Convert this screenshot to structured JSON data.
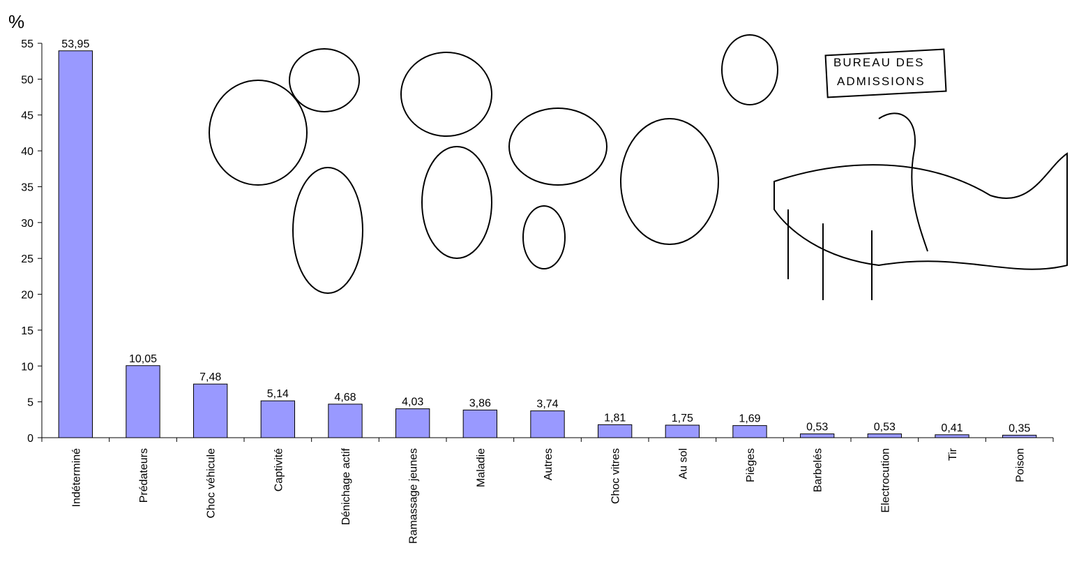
{
  "chart_data": {
    "type": "bar",
    "y_axis_label": "%",
    "categories": [
      "Indéterminé",
      "Prédateurs",
      "Choc véhicule",
      "Captivité",
      "Dénichage actif",
      "Ramassage jeunes",
      "Maladie",
      "Autres",
      "Choc vitres",
      "Au sol",
      "Pièges",
      "Barbelés",
      "Electrocution",
      "Tir",
      "Poison"
    ],
    "values": [
      53.95,
      10.05,
      7.48,
      5.14,
      4.68,
      4.03,
      3.86,
      3.74,
      1.81,
      1.75,
      1.69,
      0.53,
      0.53,
      0.41,
      0.35
    ],
    "value_labels": [
      "53,95",
      "10,05",
      "7,48",
      "5,14",
      "4,68",
      "4,03",
      "3,86",
      "3,74",
      "1,81",
      "1,75",
      "1,69",
      "0,53",
      "0,53",
      "0,41",
      "0,35"
    ],
    "color": "#9999ff",
    "ylim": [
      0,
      55
    ],
    "yticks": [
      0,
      5,
      10,
      15,
      20,
      25,
      30,
      35,
      40,
      45,
      50,
      55
    ],
    "grid": false,
    "annotations": [
      "BUREAU DES",
      "ADMISSIONS"
    ]
  }
}
